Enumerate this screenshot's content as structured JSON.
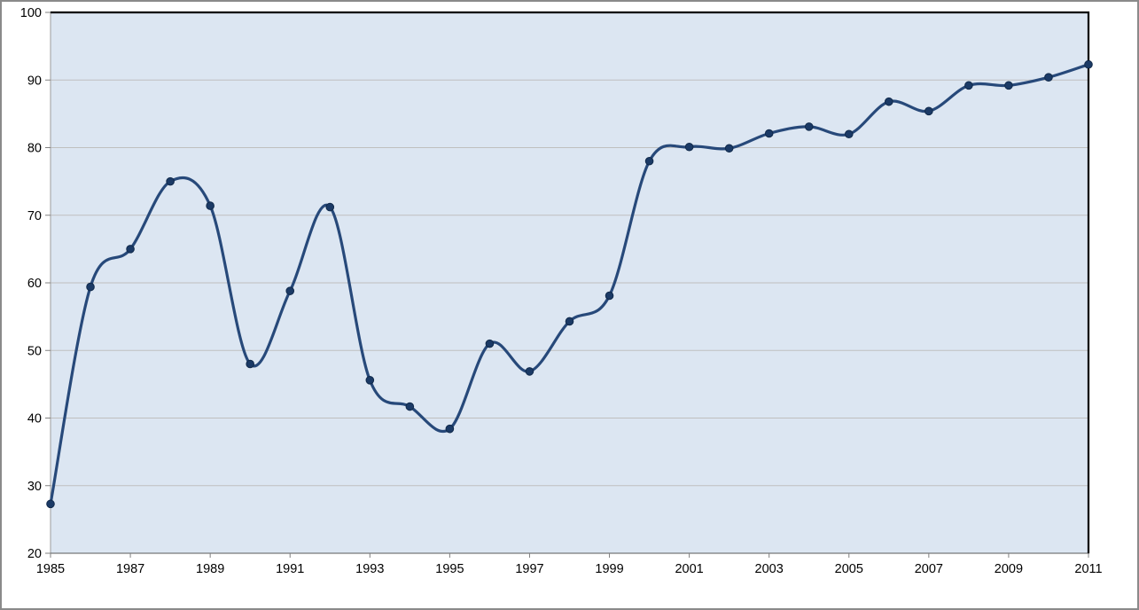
{
  "chart": {
    "colors": {
      "canvas_bg": "#FFFFFF",
      "outer_border": "#8A8A8A",
      "plot_bg": "#DCE6F2",
      "gridline": "#BFBFBF",
      "top_border": "#000000",
      "right_border": "#000000",
      "left_axis": "#9C9C9C",
      "bottom_axis": "#595959",
      "tick_mark": "#808080",
      "label_text": "#000000",
      "line": "#27497A",
      "marker_fill": "#1B3A66",
      "marker_stroke": "#10294A"
    }
  },
  "chart_data": {
    "type": "line",
    "title": "",
    "xlabel": "",
    "ylabel": "",
    "x": [
      1985,
      1986,
      1987,
      1988,
      1989,
      1990,
      1991,
      1992,
      1993,
      1994,
      1995,
      1996,
      1997,
      1998,
      1999,
      2000,
      2001,
      2002,
      2003,
      2004,
      2005,
      2006,
      2007,
      2008,
      2009,
      2010,
      2011
    ],
    "values": [
      27.3,
      59.4,
      65.0,
      75.0,
      71.4,
      48.0,
      58.8,
      71.2,
      45.6,
      41.7,
      38.4,
      51.0,
      46.9,
      54.3,
      58.1,
      78.0,
      80.1,
      79.9,
      82.1,
      83.1,
      82.0,
      86.8,
      85.4,
      89.2,
      89.2,
      90.4,
      92.3
    ],
    "ylim": [
      20,
      100
    ],
    "y_ticks": [
      20,
      30,
      40,
      50,
      60,
      70,
      80,
      90,
      100
    ],
    "x_tick_labels": [
      "1985",
      "1987",
      "1989",
      "1991",
      "1993",
      "1995",
      "1997",
      "1999",
      "2001",
      "2003",
      "2005",
      "2007",
      "2009",
      "2011"
    ],
    "x_tick_interval": 2,
    "grid": true,
    "legend_position": "none",
    "smoothed": true,
    "markers": true
  }
}
